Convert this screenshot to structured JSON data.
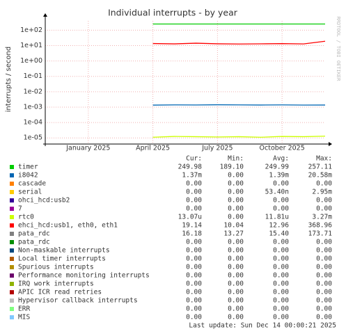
{
  "chart_data": {
    "type": "line",
    "title": "Individual interrupts - by year",
    "y_label": "interrupts / second",
    "side_text": "RRDTOOL / TOBI OETIKER",
    "log_y": true,
    "grid": true,
    "ylim": [
      4e-06,
      400
    ],
    "yticks": [
      {
        "value": 100,
        "label": "1e+02"
      },
      {
        "value": 10,
        "label": "1e+01"
      },
      {
        "value": 1,
        "label": "1e+00"
      },
      {
        "value": 0.1,
        "label": "1e-01"
      },
      {
        "value": 0.01,
        "label": "1e-02"
      },
      {
        "value": 0.001,
        "label": "1e-03"
      },
      {
        "value": 0.0001,
        "label": "1e-04"
      },
      {
        "value": 1e-05,
        "label": "1e-05"
      }
    ],
    "xlim": [
      "2024-11",
      "2025-12"
    ],
    "xticks": [
      {
        "value": "2025-01",
        "label": "January 2025"
      },
      {
        "value": "2025-04",
        "label": "April 2025"
      },
      {
        "value": "2025-07",
        "label": "July 2025"
      },
      {
        "value": "2025-10",
        "label": "October 2025"
      }
    ],
    "x": [
      "2025-04",
      "2025-05",
      "2025-06",
      "2025-07",
      "2025-08",
      "2025-09",
      "2025-10",
      "2025-11",
      "2025-12"
    ],
    "stat_headers": [
      "Cur:",
      "Min:",
      "Avg:",
      "Max:"
    ],
    "series": [
      {
        "name": "timer",
        "color": "#00cc00",
        "values": [
          249.9,
          250.0,
          249.98,
          250.01,
          249.99,
          250.0,
          249.97,
          250.02,
          249.98
        ],
        "stats": [
          "249.98",
          "189.10",
          "249.99",
          "257.11"
        ]
      },
      {
        "name": "i8042",
        "color": "#0066b3",
        "values": [
          0.00135,
          0.0014,
          0.00138,
          0.00142,
          0.00139,
          0.00137,
          0.0014,
          0.00136,
          0.00137
        ],
        "stats": [
          "1.37m",
          "0.00",
          "1.39m",
          "20.58m"
        ]
      },
      {
        "name": "cascade",
        "color": "#ff8000",
        "stats": [
          "0.00",
          "0.00",
          "0.00",
          "0.00"
        ]
      },
      {
        "name": "serial",
        "color": "#ffcc00",
        "stats": [
          "0.00",
          "0.00",
          "53.40n",
          "2.95m"
        ]
      },
      {
        "name": "ohci_hcd:usb2",
        "color": "#330099",
        "stats": [
          "0.00",
          "0.00",
          "0.00",
          "0.00"
        ]
      },
      {
        "name": "7",
        "color": "#990099",
        "stats": [
          "0.00",
          "0.00",
          "0.00",
          "0.00"
        ]
      },
      {
        "name": "rtc0",
        "color": "#ccff00",
        "values": [
          1.1e-05,
          1.25e-05,
          1.2e-05,
          1.15e-05,
          1.2e-05,
          1.1e-05,
          1.25e-05,
          1.2e-05,
          1.307e-05
        ],
        "stats": [
          "13.07u",
          "0.00",
          "11.81u",
          "3.27m"
        ]
      },
      {
        "name": "ehci_hcd:usb1, eth0, eth1",
        "color": "#ff0000",
        "values": [
          13.5,
          12.8,
          14.2,
          13.0,
          12.6,
          12.9,
          13.3,
          12.7,
          19.14
        ],
        "stats": [
          "19.14",
          "10.04",
          "12.96",
          "368.96"
        ]
      },
      {
        "name": "pata_rdc",
        "color": "#808080",
        "stats": [
          "16.18",
          "13.27",
          "15.40",
          "173.71"
        ]
      },
      {
        "name": "pata_rdc",
        "color": "#008f00",
        "stats": [
          "0.00",
          "0.00",
          "0.00",
          "0.00"
        ]
      },
      {
        "name": "Non-maskable interrupts",
        "color": "#00487d",
        "stats": [
          "0.00",
          "0.00",
          "0.00",
          "0.00"
        ]
      },
      {
        "name": "Local timer interrupts",
        "color": "#b35a00",
        "stats": [
          "0.00",
          "0.00",
          "0.00",
          "0.00"
        ]
      },
      {
        "name": "Spurious interrupts",
        "color": "#b38f00",
        "stats": [
          "0.00",
          "0.00",
          "0.00",
          "0.00"
        ]
      },
      {
        "name": "Performance monitoring interrupts",
        "color": "#6b006b",
        "stats": [
          "0.00",
          "0.00",
          "0.00",
          "0.00"
        ]
      },
      {
        "name": "IRQ work interrupts",
        "color": "#8fb300",
        "stats": [
          "0.00",
          "0.00",
          "0.00",
          "0.00"
        ]
      },
      {
        "name": "APIC ICR read retries",
        "color": "#b30000",
        "stats": [
          "0.00",
          "0.00",
          "0.00",
          "0.00"
        ]
      },
      {
        "name": "Hypervisor callback interrupts",
        "color": "#bebebe",
        "stats": [
          "0.00",
          "0.00",
          "0.00",
          "0.00"
        ]
      },
      {
        "name": "ERR",
        "color": "#80ff80",
        "stats": [
          "0.00",
          "0.00",
          "0.00",
          "0.00"
        ]
      },
      {
        "name": "MIS",
        "color": "#80c9ff",
        "stats": [
          "0.00",
          "0.00",
          "0.00",
          "0.00"
        ]
      }
    ],
    "footer": "Last update: Sun Dec 14 00:00:21 2025"
  }
}
